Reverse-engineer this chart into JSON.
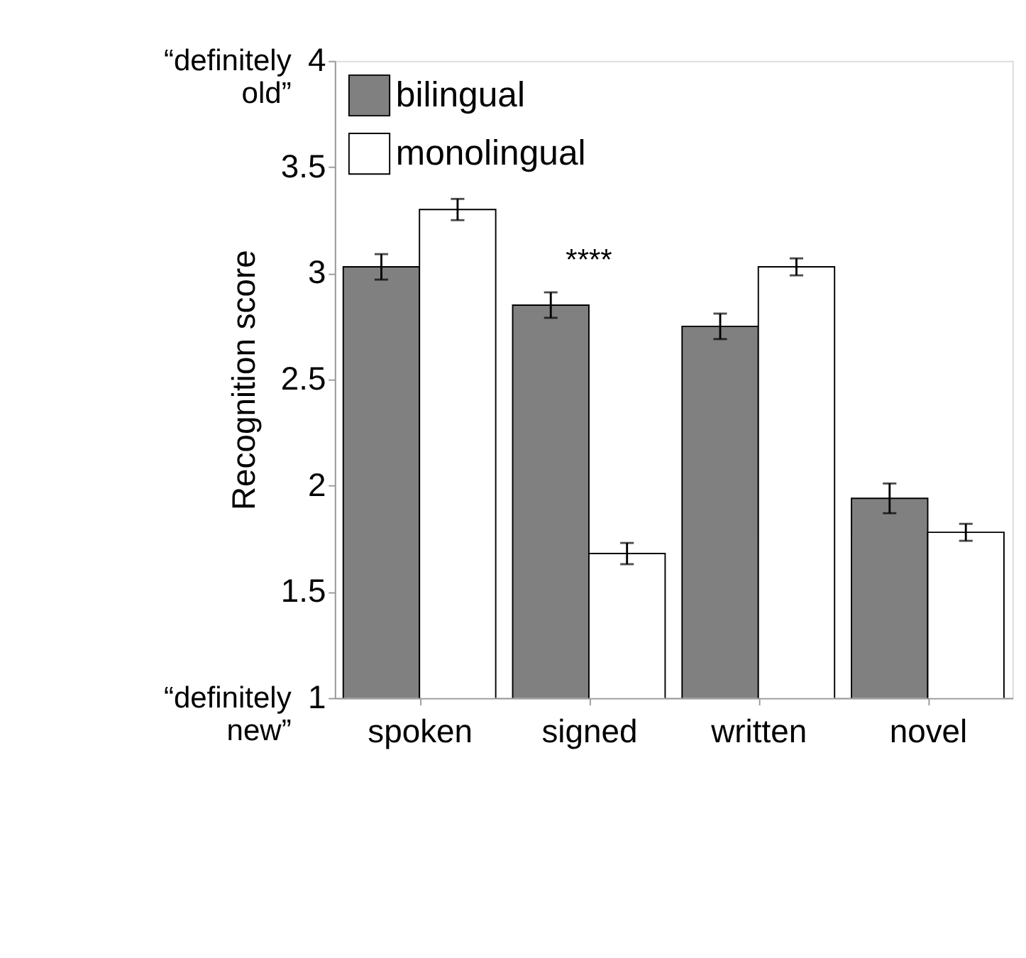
{
  "chart_data": {
    "type": "bar",
    "ylabel": "Recognition  score",
    "categories": [
      "spoken",
      "signed",
      "written",
      "novel"
    ],
    "series": [
      {
        "name": "bilingual",
        "color": "#808080",
        "values": [
          3.03,
          2.85,
          2.75,
          1.94
        ],
        "errors": [
          0.06,
          0.06,
          0.06,
          0.07
        ]
      },
      {
        "name": "monolingual",
        "color": "#ffffff",
        "values": [
          3.3,
          1.68,
          3.03,
          1.78
        ],
        "errors": [
          0.05,
          0.05,
          0.04,
          0.04
        ]
      }
    ],
    "ylim": [
      1,
      4
    ],
    "yticks": [
      1,
      1.5,
      2,
      2.5,
      3,
      3.5,
      4
    ],
    "grid": false,
    "legend": "top left",
    "annotations": [
      "“definitely new”",
      "“definitely old”",
      "****"
    ]
  }
}
